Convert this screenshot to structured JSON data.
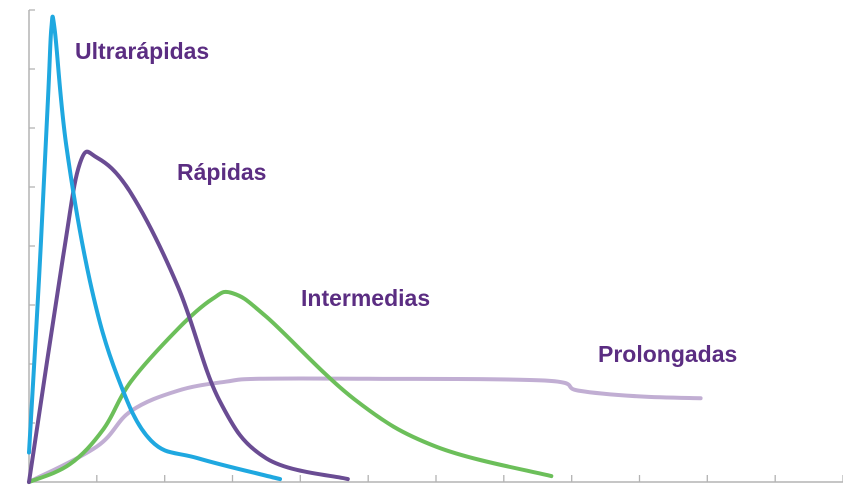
{
  "chart_data": {
    "type": "line",
    "title": "",
    "xlabel": "",
    "ylabel": "",
    "xlim": [
      0,
      12
    ],
    "ylim": [
      0,
      8
    ],
    "grid": false,
    "x_ticks": 12,
    "y_ticks": 8,
    "series": [
      {
        "name": "Ultrarápidas",
        "color": "#1fa8e0",
        "points": [
          [
            0,
            0.5
          ],
          [
            0.15,
            3.5
          ],
          [
            0.28,
            6.5
          ],
          [
            0.33,
            7.7
          ],
          [
            0.38,
            7.65
          ],
          [
            0.55,
            5.7
          ],
          [
            0.9,
            3.4
          ],
          [
            1.3,
            1.8
          ],
          [
            1.8,
            0.7
          ],
          [
            2.5,
            0.4
          ],
          [
            3.7,
            0.05
          ]
        ]
      },
      {
        "name": "Rápidas",
        "color": "#6a4c93",
        "points": [
          [
            0,
            0
          ],
          [
            0.5,
            3.8
          ],
          [
            0.75,
            5.4
          ],
          [
            1.0,
            5.5
          ],
          [
            1.5,
            4.9
          ],
          [
            2.2,
            3.3
          ],
          [
            2.8,
            1.4
          ],
          [
            3.5,
            0.4
          ],
          [
            4.7,
            0.05
          ]
        ]
      },
      {
        "name": "Intermedias",
        "color": "#6cbf5a",
        "points": [
          [
            0,
            0
          ],
          [
            0.6,
            0.3
          ],
          [
            1.1,
            0.9
          ],
          [
            1.5,
            1.7
          ],
          [
            2.2,
            2.6
          ],
          [
            2.7,
            3.1
          ],
          [
            3.0,
            3.2
          ],
          [
            3.5,
            2.8
          ],
          [
            4.8,
            1.4
          ],
          [
            6.0,
            0.6
          ],
          [
            7.7,
            0.1
          ]
        ]
      },
      {
        "name": "Prolongadas",
        "color": "#c1aed3",
        "points": [
          [
            0,
            0
          ],
          [
            1.0,
            0.6
          ],
          [
            1.5,
            1.2
          ],
          [
            2.2,
            1.55
          ],
          [
            2.9,
            1.7
          ],
          [
            3.4,
            1.75
          ],
          [
            5.0,
            1.75
          ],
          [
            7.6,
            1.72
          ],
          [
            8.1,
            1.55
          ],
          [
            9.0,
            1.45
          ],
          [
            9.9,
            1.42
          ]
        ]
      }
    ]
  }
}
